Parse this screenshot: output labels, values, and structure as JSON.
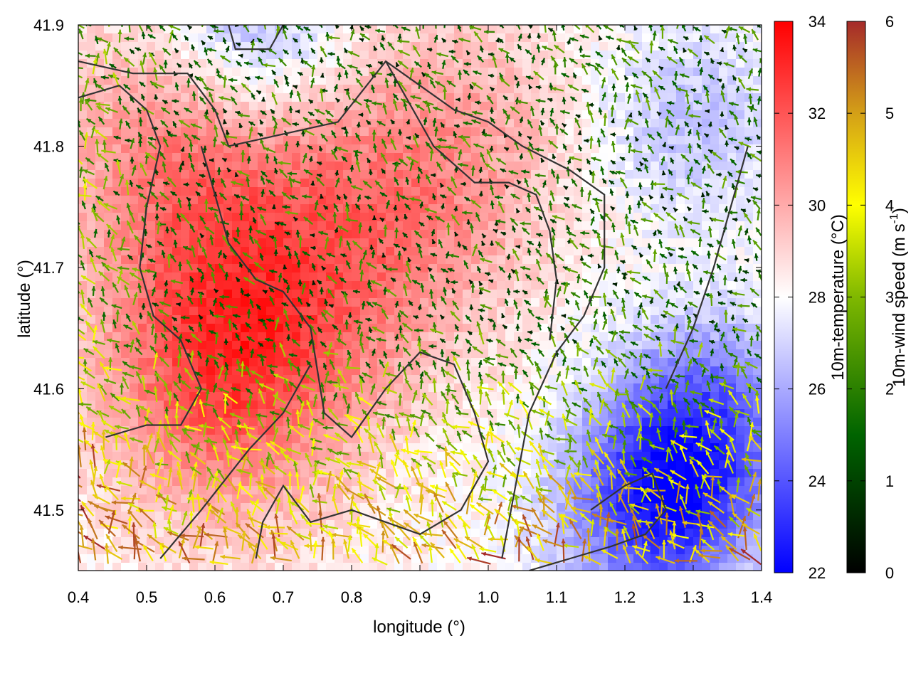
{
  "chart_data": {
    "type": "heatmap",
    "title": "",
    "xlabel": "longitude (°)",
    "ylabel": "latitude (°)",
    "xlim": [
      0.4,
      1.4
    ],
    "ylim": [
      41.45,
      41.9
    ],
    "xticks": [
      "0.4",
      "0.5",
      "0.6",
      "0.7",
      "0.8",
      "0.9",
      "1.0",
      "1.1",
      "1.2",
      "1.3",
      "1.4"
    ],
    "yticks": [
      "41.5",
      "41.6",
      "41.7",
      "41.8",
      "41.9"
    ],
    "overlay": "wind vector arrows colored by wind speed, black contour lines",
    "temperature_colorbar": {
      "label": "10m-temperature (°C)",
      "range": [
        22,
        34
      ],
      "ticks": [
        "22",
        "24",
        "26",
        "28",
        "30",
        "32",
        "34"
      ],
      "colors": [
        "#0000ff",
        "#ffffff",
        "#ff0000"
      ]
    },
    "wind_colorbar": {
      "label_main": "10m-wind speed (m s",
      "label_sup": "-1",
      "label_end": ")",
      "range": [
        0,
        6
      ],
      "ticks": [
        "0",
        "1",
        "2",
        "3",
        "4",
        "5",
        "6"
      ],
      "colors": [
        "#000000",
        "#006400",
        "#7fb800",
        "#ffff00",
        "#d4a017",
        "#b8651e",
        "#a52a2a"
      ]
    },
    "warm_centers": [
      {
        "lon": 0.62,
        "lat": 41.62,
        "t": 32.5
      },
      {
        "lon": 0.55,
        "lat": 41.8,
        "t": 31
      },
      {
        "lon": 0.8,
        "lat": 41.72,
        "t": 30.5
      },
      {
        "lon": 0.95,
        "lat": 41.8,
        "t": 30
      }
    ],
    "cool_centers": [
      {
        "lon": 1.25,
        "lat": 41.5,
        "t": 23
      },
      {
        "lon": 1.32,
        "lat": 41.58,
        "t": 24.5
      },
      {
        "lon": 0.65,
        "lat": 41.89,
        "t": 25.5
      },
      {
        "lon": 1.3,
        "lat": 41.82,
        "t": 26.5
      }
    ],
    "contours": [
      [
        [
          0.4,
          41.84
        ],
        [
          0.46,
          41.85
        ],
        [
          0.5,
          41.83
        ],
        [
          0.52,
          41.8
        ],
        [
          0.5,
          41.75
        ],
        [
          0.49,
          41.7
        ],
        [
          0.51,
          41.66
        ],
        [
          0.55,
          41.64
        ],
        [
          0.58,
          41.6
        ],
        [
          0.55,
          41.57
        ],
        [
          0.5,
          41.57
        ],
        [
          0.44,
          41.56
        ]
      ],
      [
        [
          0.4,
          41.87
        ],
        [
          0.48,
          41.86
        ],
        [
          0.56,
          41.86
        ],
        [
          0.6,
          41.83
        ],
        [
          0.62,
          41.8
        ],
        [
          0.7,
          41.81
        ],
        [
          0.78,
          41.82
        ],
        [
          0.85,
          41.87
        ],
        [
          0.9,
          41.85
        ],
        [
          0.95,
          41.83
        ],
        [
          1.0,
          41.82
        ],
        [
          1.05,
          41.8
        ],
        [
          1.12,
          41.78
        ],
        [
          1.17,
          41.76
        ],
        [
          1.17,
          41.7
        ],
        [
          1.14,
          41.66
        ],
        [
          1.1,
          41.63
        ],
        [
          1.06,
          41.58
        ],
        [
          1.04,
          41.52
        ],
        [
          1.02,
          41.46
        ]
      ],
      [
        [
          0.62,
          41.9
        ],
        [
          0.63,
          41.88
        ],
        [
          0.68,
          41.88
        ],
        [
          0.7,
          41.9
        ]
      ],
      [
        [
          0.58,
          41.8
        ],
        [
          0.6,
          41.76
        ],
        [
          0.62,
          41.72
        ],
        [
          0.66,
          41.69
        ],
        [
          0.7,
          41.68
        ],
        [
          0.74,
          41.65
        ],
        [
          0.76,
          41.58
        ],
        [
          0.8,
          41.56
        ],
        [
          0.85,
          41.6
        ],
        [
          0.9,
          41.63
        ],
        [
          0.95,
          41.62
        ],
        [
          0.98,
          41.58
        ],
        [
          1.0,
          41.54
        ],
        [
          0.96,
          41.5
        ],
        [
          0.9,
          41.48
        ],
        [
          0.8,
          41.5
        ],
        [
          0.74,
          41.49
        ],
        [
          0.7,
          41.52
        ],
        [
          0.67,
          41.49
        ],
        [
          0.66,
          41.46
        ]
      ],
      [
        [
          0.85,
          41.87
        ],
        [
          0.88,
          41.84
        ],
        [
          0.92,
          41.8
        ],
        [
          0.98,
          41.77
        ],
        [
          1.03,
          41.77
        ],
        [
          1.07,
          41.76
        ],
        [
          1.09,
          41.73
        ],
        [
          1.1,
          41.69
        ],
        [
          1.09,
          41.64
        ]
      ],
      [
        [
          1.15,
          41.5
        ],
        [
          1.2,
          41.52
        ],
        [
          1.24,
          41.53
        ],
        [
          1.26,
          41.5
        ],
        [
          1.23,
          41.48
        ],
        [
          1.18,
          41.47
        ],
        [
          1.12,
          41.46
        ],
        [
          1.06,
          41.45
        ]
      ],
      [
        [
          1.26,
          41.6
        ],
        [
          1.3,
          41.65
        ],
        [
          1.33,
          41.7
        ],
        [
          1.36,
          41.76
        ],
        [
          1.38,
          41.8
        ]
      ],
      [
        [
          0.52,
          41.46
        ],
        [
          0.58,
          41.5
        ],
        [
          0.65,
          41.55
        ],
        [
          0.7,
          41.58
        ],
        [
          0.74,
          41.62
        ]
      ]
    ]
  }
}
